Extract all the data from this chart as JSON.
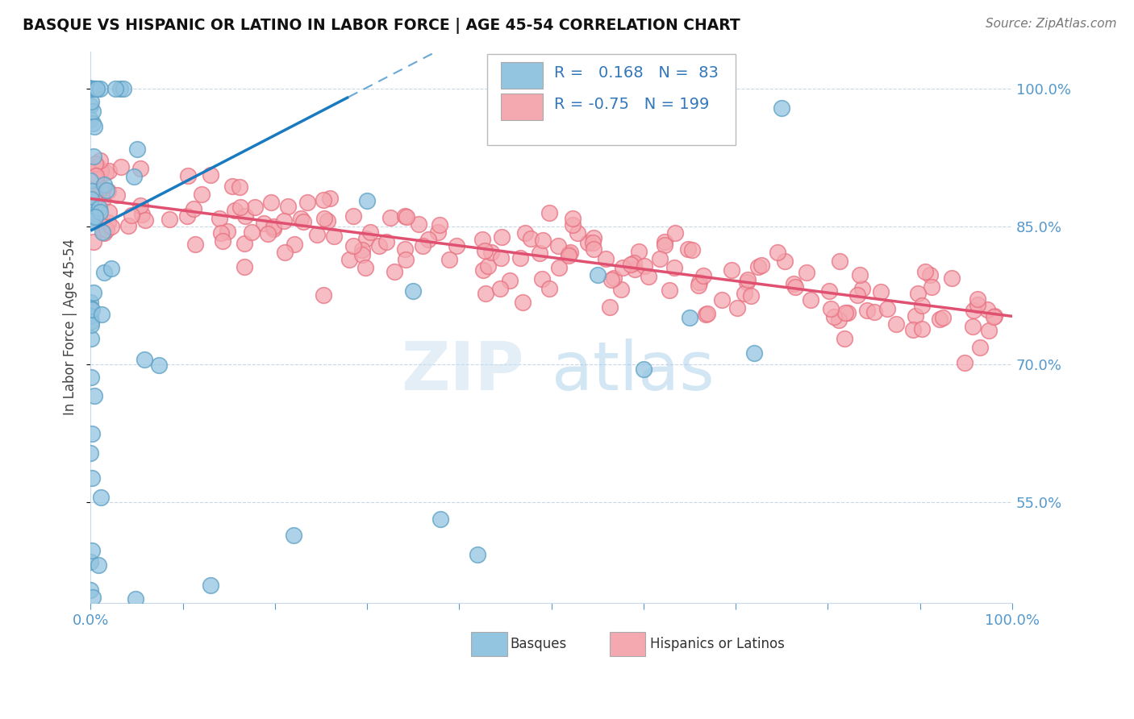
{
  "title": "BASQUE VS HISPANIC OR LATINO IN LABOR FORCE | AGE 45-54 CORRELATION CHART",
  "source_text": "Source: ZipAtlas.com",
  "ylabel": "In Labor Force | Age 45-54",
  "watermark_zip": "ZIP",
  "watermark_atlas": "atlas",
  "xlim": [
    0.0,
    1.0
  ],
  "ylim": [
    0.44,
    1.04
  ],
  "xtick_positions": [
    0.0,
    0.1,
    0.2,
    0.3,
    0.4,
    0.5,
    0.6,
    0.7,
    0.8,
    0.9,
    1.0
  ],
  "xtick_labels": [
    "0.0%",
    "",
    "",
    "",
    "",
    "",
    "",
    "",
    "",
    "",
    "100.0%"
  ],
  "ytick_positions": [
    0.55,
    0.7,
    0.85,
    1.0
  ],
  "ytick_labels": [
    "55.0%",
    "70.0%",
    "85.0%",
    "100.0%"
  ],
  "basque_R": 0.168,
  "basque_N": 83,
  "hispanic_R": -0.75,
  "hispanic_N": 199,
  "basque_color": "#93c4e0",
  "basque_edge_color": "#5a9fc4",
  "hispanic_color": "#f4a8b0",
  "hispanic_edge_color": "#e87080",
  "basque_line_color": "#1a7abf",
  "hispanic_line_color": "#e05070",
  "legend_basque_label": "Basques",
  "legend_hispanic_label": "Hispanics or Latinos",
  "grid_color": "#c8d8e8",
  "tick_color": "#5599cc",
  "label_color": "#3377bb"
}
